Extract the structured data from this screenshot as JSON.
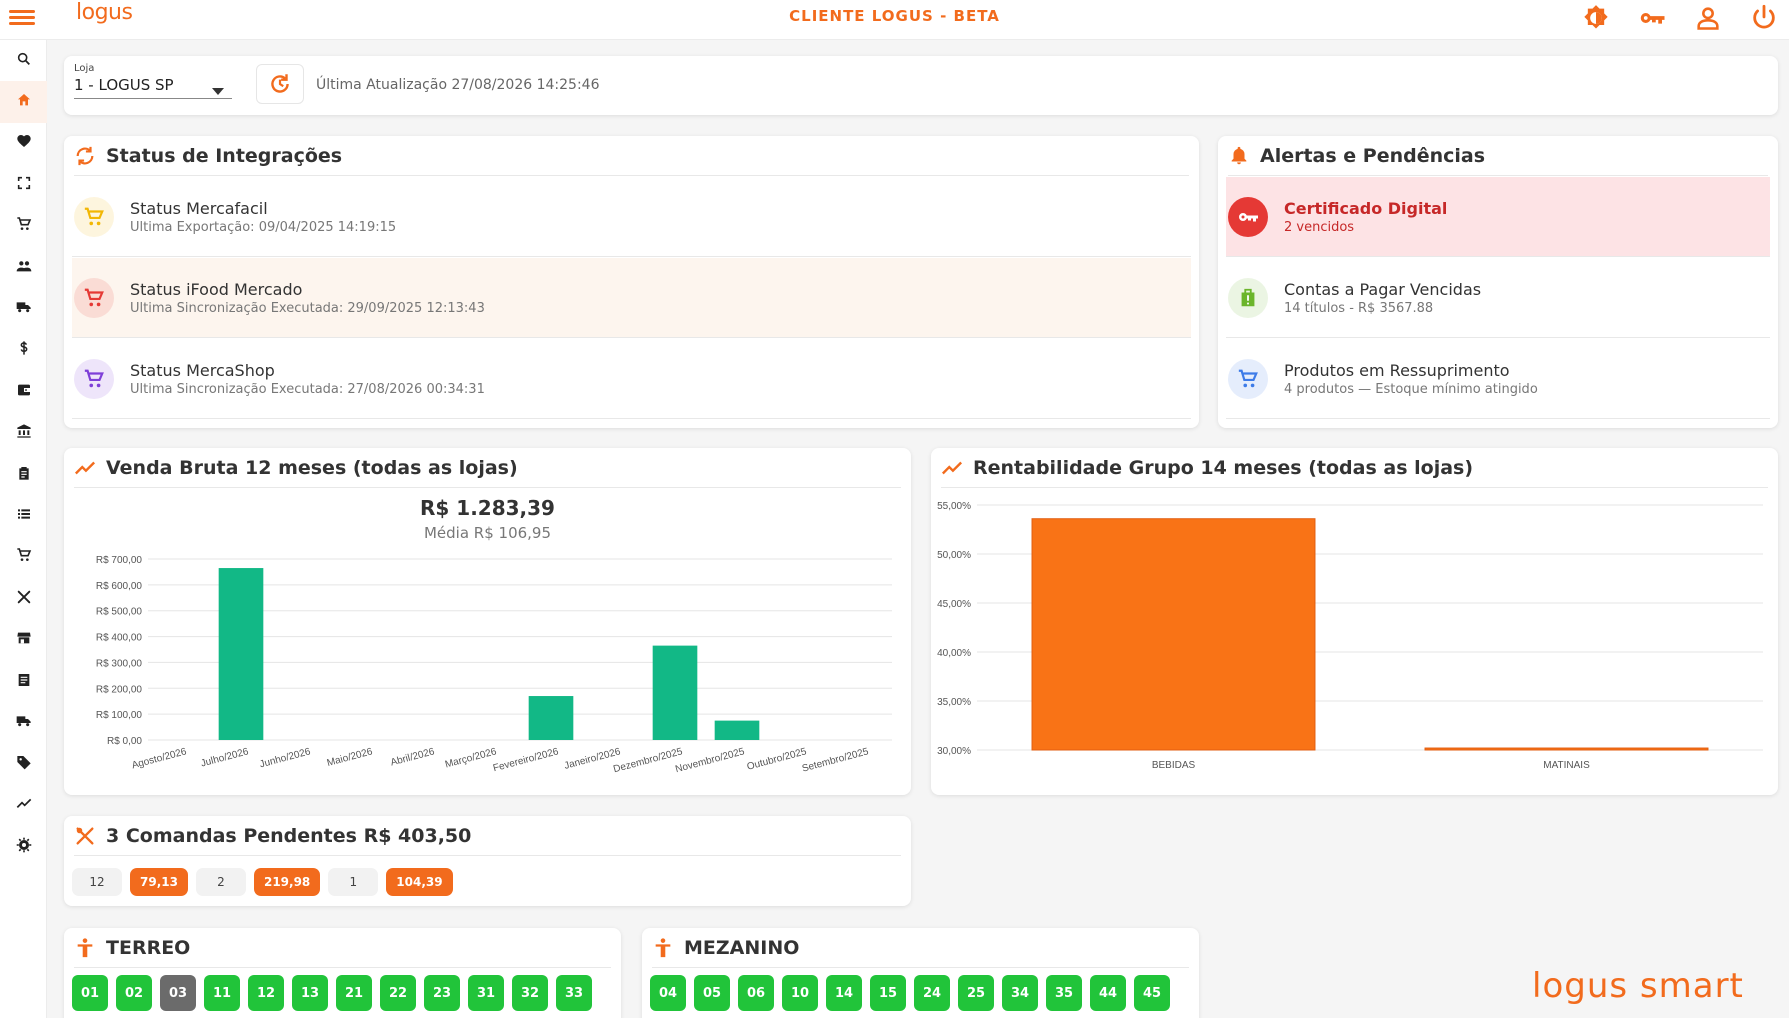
{
  "header": {
    "logo": "logus",
    "app_title": "CLIENTE LOGUS - BETA",
    "icons": [
      "theme-icon",
      "key-icon",
      "user-icon",
      "power-icon"
    ]
  },
  "sidebar": {
    "items": [
      "search-icon",
      "home-icon",
      "heart-icon",
      "fullscreen-icon",
      "cart-icon",
      "people-icon",
      "truck-icon",
      "dollar-icon",
      "wallet-icon",
      "bank-icon",
      "clipboard-icon",
      "list-icon",
      "cart-icon",
      "cutlery-icon",
      "store-icon",
      "document-icon",
      "truck-icon",
      "tag-icon",
      "trending-icon",
      "settings-icon"
    ],
    "active_index": 1
  },
  "store": {
    "label": "Loja",
    "value": "1 - LOGUS SP",
    "last_update": "Última Atualização 27/08/2026 14:25:46"
  },
  "integrations": {
    "title": "Status de Integrações",
    "items": [
      {
        "title": "Status Mercafacil",
        "subtitle": "Ultima Exportação: 09/04/2025 14:19:15",
        "icon": "cart-icon",
        "color": "#f2b705"
      },
      {
        "title": "Status iFood Mercado",
        "subtitle": "Ultima Sincronização Executada: 29/09/2025 12:13:43",
        "icon": "cart-icon",
        "color": "#e53935"
      },
      {
        "title": "Status MercaShop",
        "subtitle": "Ultima Sincronização Executada: 27/08/2026 00:34:31",
        "icon": "cart-icon",
        "color": "#7e3fd8"
      }
    ]
  },
  "alerts": {
    "title": "Alertas e Pendências",
    "items": [
      {
        "title": "Certificado Digital",
        "subtitle": "2 vencidos",
        "icon": "key-icon",
        "color": "#e53935"
      },
      {
        "title": "Contas a Pagar Vencidas",
        "subtitle": "14 títulos - R$ 3567.88",
        "icon": "alert-bag-icon",
        "color": "#6bb52b"
      },
      {
        "title": "Produtos em Ressuprimento",
        "subtitle": "4 produtos — Estoque mínimo atingido",
        "icon": "cart-icon",
        "color": "#3d7be8"
      }
    ]
  },
  "venda_bruta": {
    "title": "Venda Bruta 12 meses (todas as lojas)",
    "total": "R$ 1.283,39",
    "average": "Média R$ 106,95"
  },
  "rentabilidade": {
    "title": "Rentabilidade Grupo 14 meses (todas as lojas)"
  },
  "chart_data": [
    {
      "type": "bar",
      "title": "Venda Bruta 12 meses (todas as lojas)",
      "categories": [
        "Agosto/2026",
        "Julho/2026",
        "Junho/2026",
        "Maio/2026",
        "Abril/2026",
        "Março/2026",
        "Fevereiro/2026",
        "Janeiro/2026",
        "Dezembro/2025",
        "Novembro/2025",
        "Outubro/2025",
        "Setembro/2025"
      ],
      "values": [
        0,
        665,
        0,
        0,
        0,
        0,
        170,
        0,
        365,
        75,
        0,
        0
      ],
      "ylim": [
        0,
        700
      ],
      "yticks": [
        "R$ 0,00",
        "R$ 100,00",
        "R$ 200,00",
        "R$ 300,00",
        "R$ 400,00",
        "R$ 500,00",
        "R$ 600,00",
        "R$ 700,00"
      ],
      "color": "#12b886",
      "grid": true
    },
    {
      "type": "bar",
      "title": "Rentabilidade Grupo 14 meses (todas as lojas)",
      "categories": [
        "BEBIDAS",
        "MATINAIS"
      ],
      "values": [
        53.6,
        30.2
      ],
      "ylim": [
        30,
        55
      ],
      "yticks": [
        "30,00%",
        "35,00%",
        "40,00%",
        "45,00%",
        "50,00%",
        "55,00%"
      ],
      "color": "#f97316",
      "grid": true
    }
  ],
  "comandas": {
    "title": "3 Comandas Pendentes R$ 403,50",
    "items": [
      {
        "id": "12",
        "value": "79,13"
      },
      {
        "id": "2",
        "value": "219,98"
      },
      {
        "id": "1",
        "value": "104,39"
      }
    ]
  },
  "floors": [
    {
      "name": "TERREO",
      "tables": [
        {
          "n": "01",
          "busy": false
        },
        {
          "n": "02",
          "busy": false
        },
        {
          "n": "03",
          "busy": true
        },
        {
          "n": "11",
          "busy": false
        },
        {
          "n": "12",
          "busy": false
        },
        {
          "n": "13",
          "busy": false
        },
        {
          "n": "21",
          "busy": false
        },
        {
          "n": "22",
          "busy": false
        },
        {
          "n": "23",
          "busy": false
        },
        {
          "n": "31",
          "busy": false
        },
        {
          "n": "32",
          "busy": false
        },
        {
          "n": "33",
          "busy": false
        }
      ]
    },
    {
      "name": "MEZANINO",
      "tables": [
        {
          "n": "04",
          "busy": false
        },
        {
          "n": "05",
          "busy": false
        },
        {
          "n": "06",
          "busy": false
        },
        {
          "n": "10",
          "busy": false
        },
        {
          "n": "14",
          "busy": false
        },
        {
          "n": "15",
          "busy": false
        },
        {
          "n": "24",
          "busy": false
        },
        {
          "n": "25",
          "busy": false
        },
        {
          "n": "34",
          "busy": false
        },
        {
          "n": "35",
          "busy": false
        },
        {
          "n": "44",
          "busy": false
        },
        {
          "n": "45",
          "busy": false
        }
      ]
    }
  ],
  "brand_footer": "logus smart"
}
